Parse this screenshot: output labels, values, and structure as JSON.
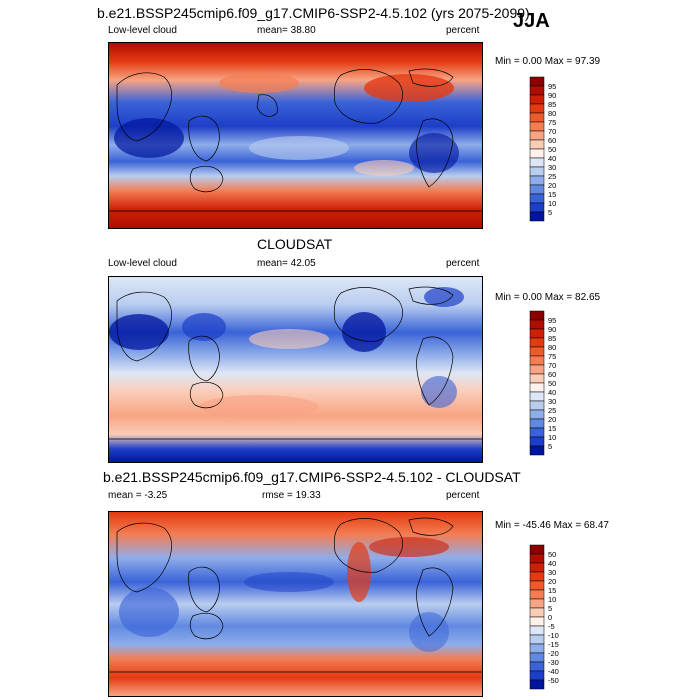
{
  "season": "JJA",
  "panels": [
    {
      "id": "model",
      "title": "b.e21.BSSP245cmip6.f09_g17.CMIP6-SSP2-4.5.102 (yrs 2075-2099)",
      "left_label": "Low-level cloud",
      "center_label": "mean=  38.80",
      "right_label": "percent",
      "minmax": "Min =   0.00 Max =  97.39",
      "colorbar_labels": [
        "95",
        "90",
        "85",
        "80",
        "75",
        "70",
        "60",
        "50",
        "40",
        "30",
        "25",
        "20",
        "15",
        "10",
        "5"
      ],
      "colorbar_colors": [
        "#8b0000",
        "#b00c00",
        "#cf1f07",
        "#e43a12",
        "#ef5a2a",
        "#f47d52",
        "#f8a484",
        "#fbcdb7",
        "#fdf1ea",
        "#dde6f6",
        "#b9cdef",
        "#8fadea",
        "#6189e2",
        "#3a63d8",
        "#1d3fc8",
        "#00159e"
      ]
    },
    {
      "id": "obs",
      "title": "CLOUDSAT",
      "left_label": "Low-level cloud",
      "center_label": "mean=  42.05",
      "right_label": "percent",
      "minmax": "Min =   0.00 Max =  82.65",
      "colorbar_labels": [
        "95",
        "90",
        "85",
        "80",
        "75",
        "70",
        "60",
        "50",
        "40",
        "30",
        "25",
        "20",
        "15",
        "10",
        "5"
      ],
      "colorbar_colors": [
        "#8b0000",
        "#b00c00",
        "#cf1f07",
        "#e43a12",
        "#ef5a2a",
        "#f47d52",
        "#f8a484",
        "#fbcdb7",
        "#fdf1ea",
        "#dde6f6",
        "#b9cdef",
        "#8fadea",
        "#6189e2",
        "#3a63d8",
        "#1d3fc8",
        "#00159e"
      ]
    },
    {
      "id": "diff",
      "title": "b.e21.BSSP245cmip6.f09_g17.CMIP6-SSP2-4.5.102 - CLOUDSAT",
      "left_label": "mean =  -3.25",
      "center_label": "rmse =  19.33",
      "right_label": "percent",
      "minmax": "Min = -45.46 Max =  68.47",
      "colorbar_labels": [
        "50",
        "40",
        "30",
        "20",
        "15",
        "10",
        "5",
        "0",
        "-5",
        "-10",
        "-15",
        "-20",
        "-30",
        "-40",
        "-50"
      ],
      "colorbar_colors": [
        "#8b0000",
        "#b00c00",
        "#cf1f07",
        "#e43a12",
        "#ef5a2a",
        "#f47d52",
        "#f8a484",
        "#fbcdb7",
        "#fdf1ea",
        "#dde6f6",
        "#b9cdef",
        "#8fadea",
        "#6189e2",
        "#3a63d8",
        "#1d3fc8",
        "#00159e"
      ]
    }
  ]
}
